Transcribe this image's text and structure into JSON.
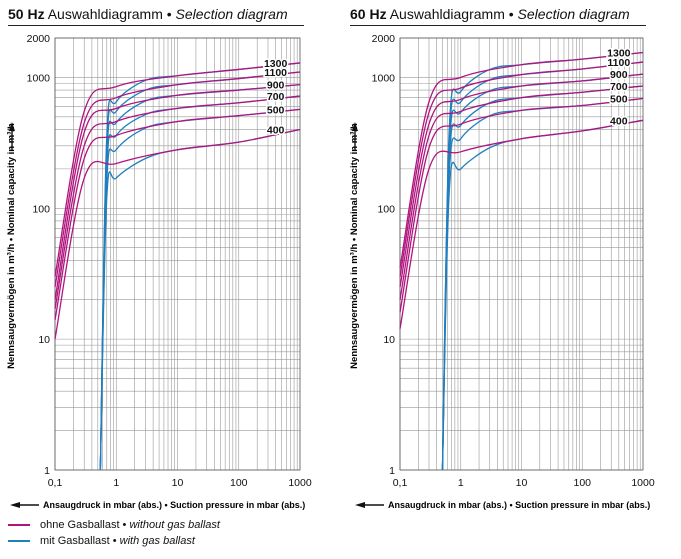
{
  "colors": {
    "without_gas_ballast": "#b0157f",
    "with_gas_ballast": "#1f7fbf",
    "grid": "#999999"
  },
  "legend": {
    "without": {
      "de": "ohne Gasballast",
      "sep": " • ",
      "en": "without gas ballast"
    },
    "with": {
      "de": "mit Gasballast",
      "sep": " • ",
      "en": "with gas ballast"
    }
  },
  "chart_data": [
    {
      "type": "line",
      "title": {
        "freq": "50 Hz",
        "de": " Auswahldiagramm",
        "sep": " • ",
        "en": "Selection diagram"
      },
      "ylabel": "Nennsaugvermögen in m³/h • Nominal capacity in m³/h",
      "xlabel": "Ansaugdruck in mbar (abs.) • Suction pressure in mbar (abs.)",
      "x_scale": "log",
      "y_scale": "log",
      "xlim": [
        0.1,
        1000
      ],
      "ylim": [
        1,
        2000
      ],
      "x_ticks": [
        "0,1",
        "1",
        "10",
        "100",
        "1000"
      ],
      "y_ticks": [
        "1",
        "10",
        "100",
        "1000",
        "2000"
      ],
      "grid": true,
      "curve_labels": [
        "1300",
        "1100",
        "900",
        "700",
        "500",
        "400"
      ],
      "series": [
        {
          "label": "1300",
          "without_gas_ballast": {
            "x": [
              0.1,
              0.3,
              1,
              10,
              100,
              1000
            ],
            "y": [
              30,
              550,
              850,
              1030,
              1150,
              1290
            ]
          },
          "with_gas_ballast": {
            "x": [
              0.55,
              0.7,
              1,
              3,
              10,
              100,
              1000
            ],
            "y": [
              1,
              350,
              650,
              950,
              1030,
              1150,
              1290
            ]
          }
        },
        {
          "label": "1100",
          "without_gas_ballast": {
            "x": [
              0.1,
              0.3,
              1,
              10,
              100,
              1000
            ],
            "y": [
              25,
              450,
              700,
              880,
              980,
              1100
            ]
          },
          "with_gas_ballast": {
            "x": [
              0.55,
              0.7,
              1,
              3,
              10,
              100,
              1000
            ],
            "y": [
              1,
              300,
              550,
              800,
              880,
              980,
              1100
            ]
          }
        },
        {
          "label": "900",
          "without_gas_ballast": {
            "x": [
              0.1,
              0.3,
              1,
              10,
              100,
              1000
            ],
            "y": [
              20,
              380,
              580,
              730,
              800,
              880
            ]
          },
          "with_gas_ballast": {
            "x": [
              0.55,
              0.7,
              1,
              3,
              10,
              100,
              1000
            ],
            "y": [
              1,
              250,
              450,
              660,
              730,
              800,
              880
            ]
          }
        },
        {
          "label": "700",
          "without_gas_ballast": {
            "x": [
              0.1,
              0.3,
              1,
              10,
              100,
              1000
            ],
            "y": [
              17,
              300,
              460,
              580,
              640,
              720
            ]
          },
          "with_gas_ballast": {
            "x": [
              0.55,
              0.7,
              1,
              3,
              10,
              100,
              1000
            ],
            "y": [
              1,
              200,
              360,
              520,
              580,
              640,
              720
            ]
          }
        },
        {
          "label": "500",
          "without_gas_ballast": {
            "x": [
              0.1,
              0.3,
              1,
              10,
              100,
              1000
            ],
            "y": [
              14,
              240,
              360,
              460,
              510,
              570
            ]
          },
          "with_gas_ballast": {
            "x": [
              0.55,
              0.7,
              1,
              3,
              10,
              100,
              1000
            ],
            "y": [
              1,
              160,
              280,
              410,
              460,
              510,
              570
            ]
          }
        },
        {
          "label": "400",
          "without_gas_ballast": {
            "x": [
              0.1,
              0.3,
              1,
              10,
              100,
              1000
            ],
            "y": [
              10,
              170,
              220,
              280,
              320,
              400
            ]
          },
          "with_gas_ballast": {
            "x": [
              0.55,
              0.7,
              1,
              3,
              10,
              100,
              1000
            ],
            "y": [
              1,
              120,
              170,
              240,
              280,
              320,
              400
            ]
          }
        }
      ]
    },
    {
      "type": "line",
      "title": {
        "freq": "60 Hz",
        "de": " Auswahldiagramm",
        "sep": " • ",
        "en": "Selection diagram"
      },
      "ylabel": "Nennsaugvermögen in m³/h • Nominal capacity in m³/h",
      "xlabel": "Ansaugdruck in mbar (abs.) • Suction pressure in mbar (abs.)",
      "x_scale": "log",
      "y_scale": "log",
      "xlim": [
        0.1,
        1000
      ],
      "ylim": [
        1,
        2000
      ],
      "x_ticks": [
        "0,1",
        "1",
        "10",
        "100",
        "1000"
      ],
      "y_ticks": [
        "1",
        "10",
        "100",
        "1000",
        "2000"
      ],
      "grid": true,
      "curve_labels": [
        "1300",
        "1100",
        "900",
        "700",
        "500",
        "400"
      ],
      "series": [
        {
          "label": "1300",
          "without_gas_ballast": {
            "x": [
              0.1,
              0.3,
              1,
              10,
              100,
              1000
            ],
            "y": [
              35,
              650,
              1000,
              1250,
              1380,
              1550
            ]
          },
          "with_gas_ballast": {
            "x": [
              0.5,
              0.65,
              1,
              3,
              10,
              100,
              1000
            ],
            "y": [
              1,
              420,
              780,
              1150,
              1250,
              1380,
              1550
            ]
          }
        },
        {
          "label": "1100",
          "without_gas_ballast": {
            "x": [
              0.1,
              0.3,
              1,
              10,
              100,
              1000
            ],
            "y": [
              30,
              540,
              830,
              1050,
              1160,
              1310
            ]
          },
          "with_gas_ballast": {
            "x": [
              0.5,
              0.65,
              1,
              3,
              10,
              100,
              1000
            ],
            "y": [
              1,
              360,
              650,
              960,
              1050,
              1160,
              1310
            ]
          }
        },
        {
          "label": "900",
          "without_gas_ballast": {
            "x": [
              0.1,
              0.3,
              1,
              10,
              100,
              1000
            ],
            "y": [
              25,
              440,
              680,
              860,
              940,
              1060
            ]
          },
          "with_gas_ballast": {
            "x": [
              0.5,
              0.65,
              1,
              3,
              10,
              100,
              1000
            ],
            "y": [
              1,
              300,
              540,
              790,
              860,
              940,
              1060
            ]
          }
        },
        {
          "label": "700",
          "without_gas_ballast": {
            "x": [
              0.1,
              0.3,
              1,
              10,
              100,
              1000
            ],
            "y": [
              20,
              360,
              550,
              700,
              770,
              860
            ]
          },
          "with_gas_ballast": {
            "x": [
              0.5,
              0.65,
              1,
              3,
              10,
              100,
              1000
            ],
            "y": [
              1,
              240,
              430,
              640,
              700,
              770,
              860
            ]
          }
        },
        {
          "label": "500",
          "without_gas_ballast": {
            "x": [
              0.1,
              0.3,
              1,
              10,
              100,
              1000
            ],
            "y": [
              16,
              290,
              440,
              560,
              610,
              690
            ]
          },
          "with_gas_ballast": {
            "x": [
              0.5,
              0.65,
              1,
              3,
              10,
              100,
              1000
            ],
            "y": [
              1,
              190,
              340,
              510,
              560,
              610,
              690
            ]
          }
        },
        {
          "label": "400",
          "without_gas_ballast": {
            "x": [
              0.1,
              0.3,
              1,
              10,
              100,
              1000
            ],
            "y": [
              12,
              200,
              270,
              340,
              390,
              470
            ]
          },
          "with_gas_ballast": {
            "x": [
              0.5,
              0.65,
              1,
              3,
              10,
              100,
              1000
            ],
            "y": [
              1,
              140,
              200,
              290,
              340,
              390,
              470
            ]
          }
        }
      ]
    }
  ]
}
